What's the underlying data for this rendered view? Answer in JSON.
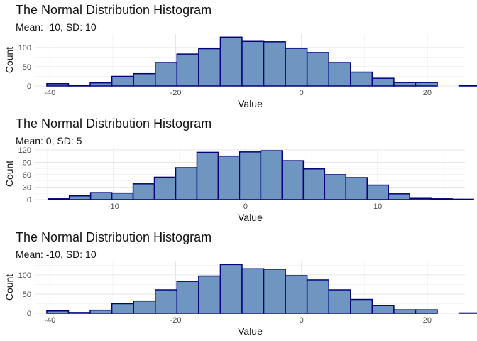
{
  "chart_data": [
    {
      "type": "bar",
      "title": "The Normal Distribution Histogram",
      "subtitle": "Mean: -10, SD: 10",
      "xlabel": "Value",
      "ylabel": "Count",
      "grid": true,
      "bin_width": 3.45,
      "bin_start": -40.5,
      "xlim": [
        -42.3,
        26.0
      ],
      "ylim": [
        0,
        135
      ],
      "x_ticks": [
        -40,
        -20,
        0,
        20
      ],
      "y_ticks": [
        0,
        50,
        100
      ],
      "values": [
        6,
        2,
        8,
        25,
        32,
        61,
        83,
        97,
        127,
        116,
        115,
        98,
        87,
        61,
        36,
        20,
        9,
        9,
        0,
        1
      ]
    },
    {
      "type": "bar",
      "title": "The Normal Distribution Histogram",
      "subtitle": "Mean: 0, SD: 5",
      "xlabel": "Value",
      "ylabel": "Count",
      "grid": true,
      "bin_width": 1.61,
      "bin_start": -14.95,
      "xlim": [
        -15.9,
        16.6
      ],
      "ylim": [
        0,
        125
      ],
      "x_ticks": [
        -10,
        0,
        10
      ],
      "y_ticks": [
        0,
        30,
        60,
        90,
        120
      ],
      "values": [
        2,
        9,
        17,
        16,
        38,
        54,
        77,
        114,
        105,
        115,
        118,
        94,
        74,
        60,
        53,
        35,
        14,
        3,
        2,
        1
      ]
    },
    {
      "type": "bar",
      "title": "The Normal Distribution Histogram",
      "subtitle": "Mean: -10, SD: 10",
      "xlabel": "Value",
      "ylabel": "Count",
      "grid": true,
      "bin_width": 3.45,
      "bin_start": -40.5,
      "xlim": [
        -42.3,
        26.0
      ],
      "ylim": [
        0,
        135
      ],
      "x_ticks": [
        -40,
        -20,
        0,
        20
      ],
      "y_ticks": [
        0,
        50,
        100
      ],
      "values": [
        6,
        2,
        8,
        25,
        32,
        61,
        83,
        97,
        127,
        116,
        115,
        98,
        87,
        61,
        36,
        20,
        9,
        9,
        0,
        1
      ]
    }
  ]
}
